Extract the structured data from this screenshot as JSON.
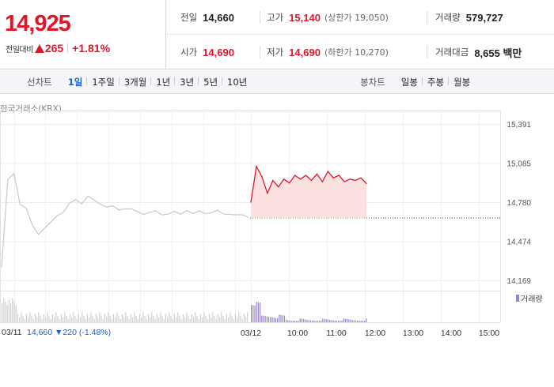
{
  "summary": {
    "price": "14,925",
    "change_label": "전일대비",
    "change": "265",
    "change_rate": "+1.81%",
    "prev_close_label": "전일",
    "prev_close": "14,660",
    "high_label": "고가",
    "high": "15,140",
    "upper_limit": "(상한가 19,050)",
    "volume_label": "거래량",
    "volume": "579,727",
    "open_label": "시가",
    "open": "14,690",
    "low_label": "저가",
    "low": "14,690",
    "lower_limit": "(하한가 10,270)",
    "amount_label": "거래대금",
    "amount": "8,655 백만"
  },
  "tabs": {
    "line_label": "선차트",
    "line_tabs": [
      "1일",
      "1주일",
      "3개월",
      "1년",
      "3년",
      "5년",
      "10년"
    ],
    "candle_label": "봉차트",
    "candle_tabs": [
      "일봉",
      "주봉",
      "월봉"
    ]
  },
  "chart": {
    "source": "한국거래소(KRX)",
    "y_ticks": [
      "15,391",
      "15,085",
      "14,780",
      "14,474",
      "14,169"
    ],
    "x_ticks": [
      "03/12",
      "10:00",
      "11:00",
      "12:00",
      "13:00",
      "14:00",
      "15:00"
    ],
    "prev_date": "03/11",
    "prev_summary": "14,660 ▼220 (-1.48%)",
    "volume_legend": "거래량",
    "colors": {
      "today": "#e0162b",
      "prev": "#c8c8c8",
      "fill": "#fbdcdc",
      "volume_today": "#9b86c9",
      "volume_prev": "#cfcfcf"
    }
  },
  "chart_data": {
    "type": "line",
    "ylim": [
      14169,
      15391
    ],
    "prev_close": 14660,
    "series": [
      {
        "name": "",
        "x": [
          "09:00",
          "09:05",
          "09:10",
          "09:15",
          "09:20",
          "09:25",
          "09:30",
          "09:40",
          "09:50",
          "10:00",
          "10:10",
          "10:20",
          "10:30",
          "10:40",
          "10:50",
          "11:00",
          "11:10",
          "11:20",
          "11:30",
          "11:40",
          "11:50",
          "11:55"
        ],
        "values": [
          14780,
          15060,
          14980,
          14850,
          14950,
          14900,
          14960,
          14930,
          14990,
          14960,
          14990,
          14950,
          15000,
          14940,
          15020,
          14970,
          14990,
          14940,
          14960,
          14950,
          14970,
          14925
        ]
      }
    ]
  }
}
